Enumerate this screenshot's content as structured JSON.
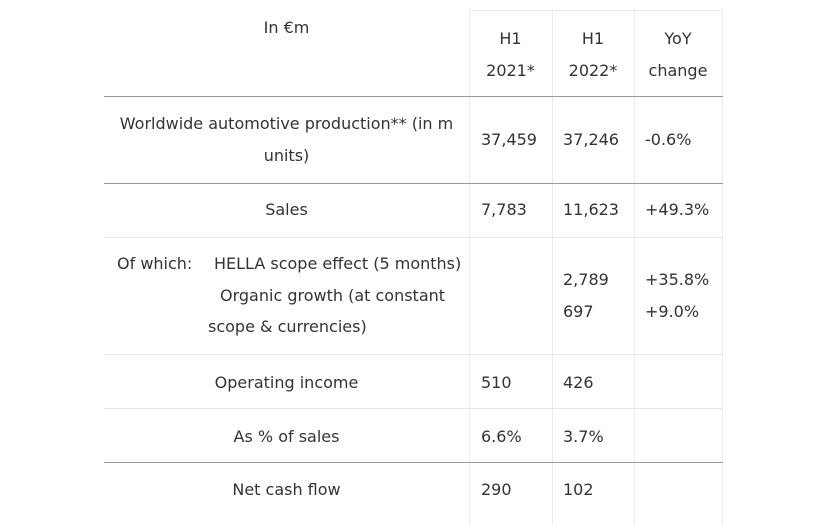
{
  "header": {
    "unit_label": "In €m",
    "col1": [
      "H1",
      "2021*"
    ],
    "col2": [
      "H1",
      "2022*"
    ],
    "col3": [
      "YoY",
      "change"
    ]
  },
  "rows": {
    "production": {
      "label_line1": "Worldwide automotive production** (in m",
      "label_line2": "units)",
      "h1_2021": "37,459",
      "h1_2022": "37,246",
      "yoy": "-0.6%"
    },
    "sales": {
      "label": "Sales",
      "h1_2021": "7,783",
      "h1_2022": "11,623",
      "yoy": "+49.3%"
    },
    "of_which": {
      "prefix": "Of which:",
      "label_line1": "HELLA scope effect (5 months)",
      "label_line2": "Organic growth (at constant",
      "label_line3": "scope & currencies)",
      "h1_2022": [
        "2,789",
        "697"
      ],
      "yoy": [
        "+35.8%",
        "+9.0%"
      ]
    },
    "operating_income": {
      "label": "Operating income",
      "h1_2021": "510",
      "h1_2022": "426",
      "yoy": ""
    },
    "pct_of_sales": {
      "label": "As % of sales",
      "h1_2021": "6.6%",
      "h1_2022": "3.7%",
      "yoy": ""
    },
    "net_cash_flow": {
      "label": "Net cash flow",
      "h1_2021": "290",
      "h1_2022": "102",
      "yoy": ""
    }
  }
}
